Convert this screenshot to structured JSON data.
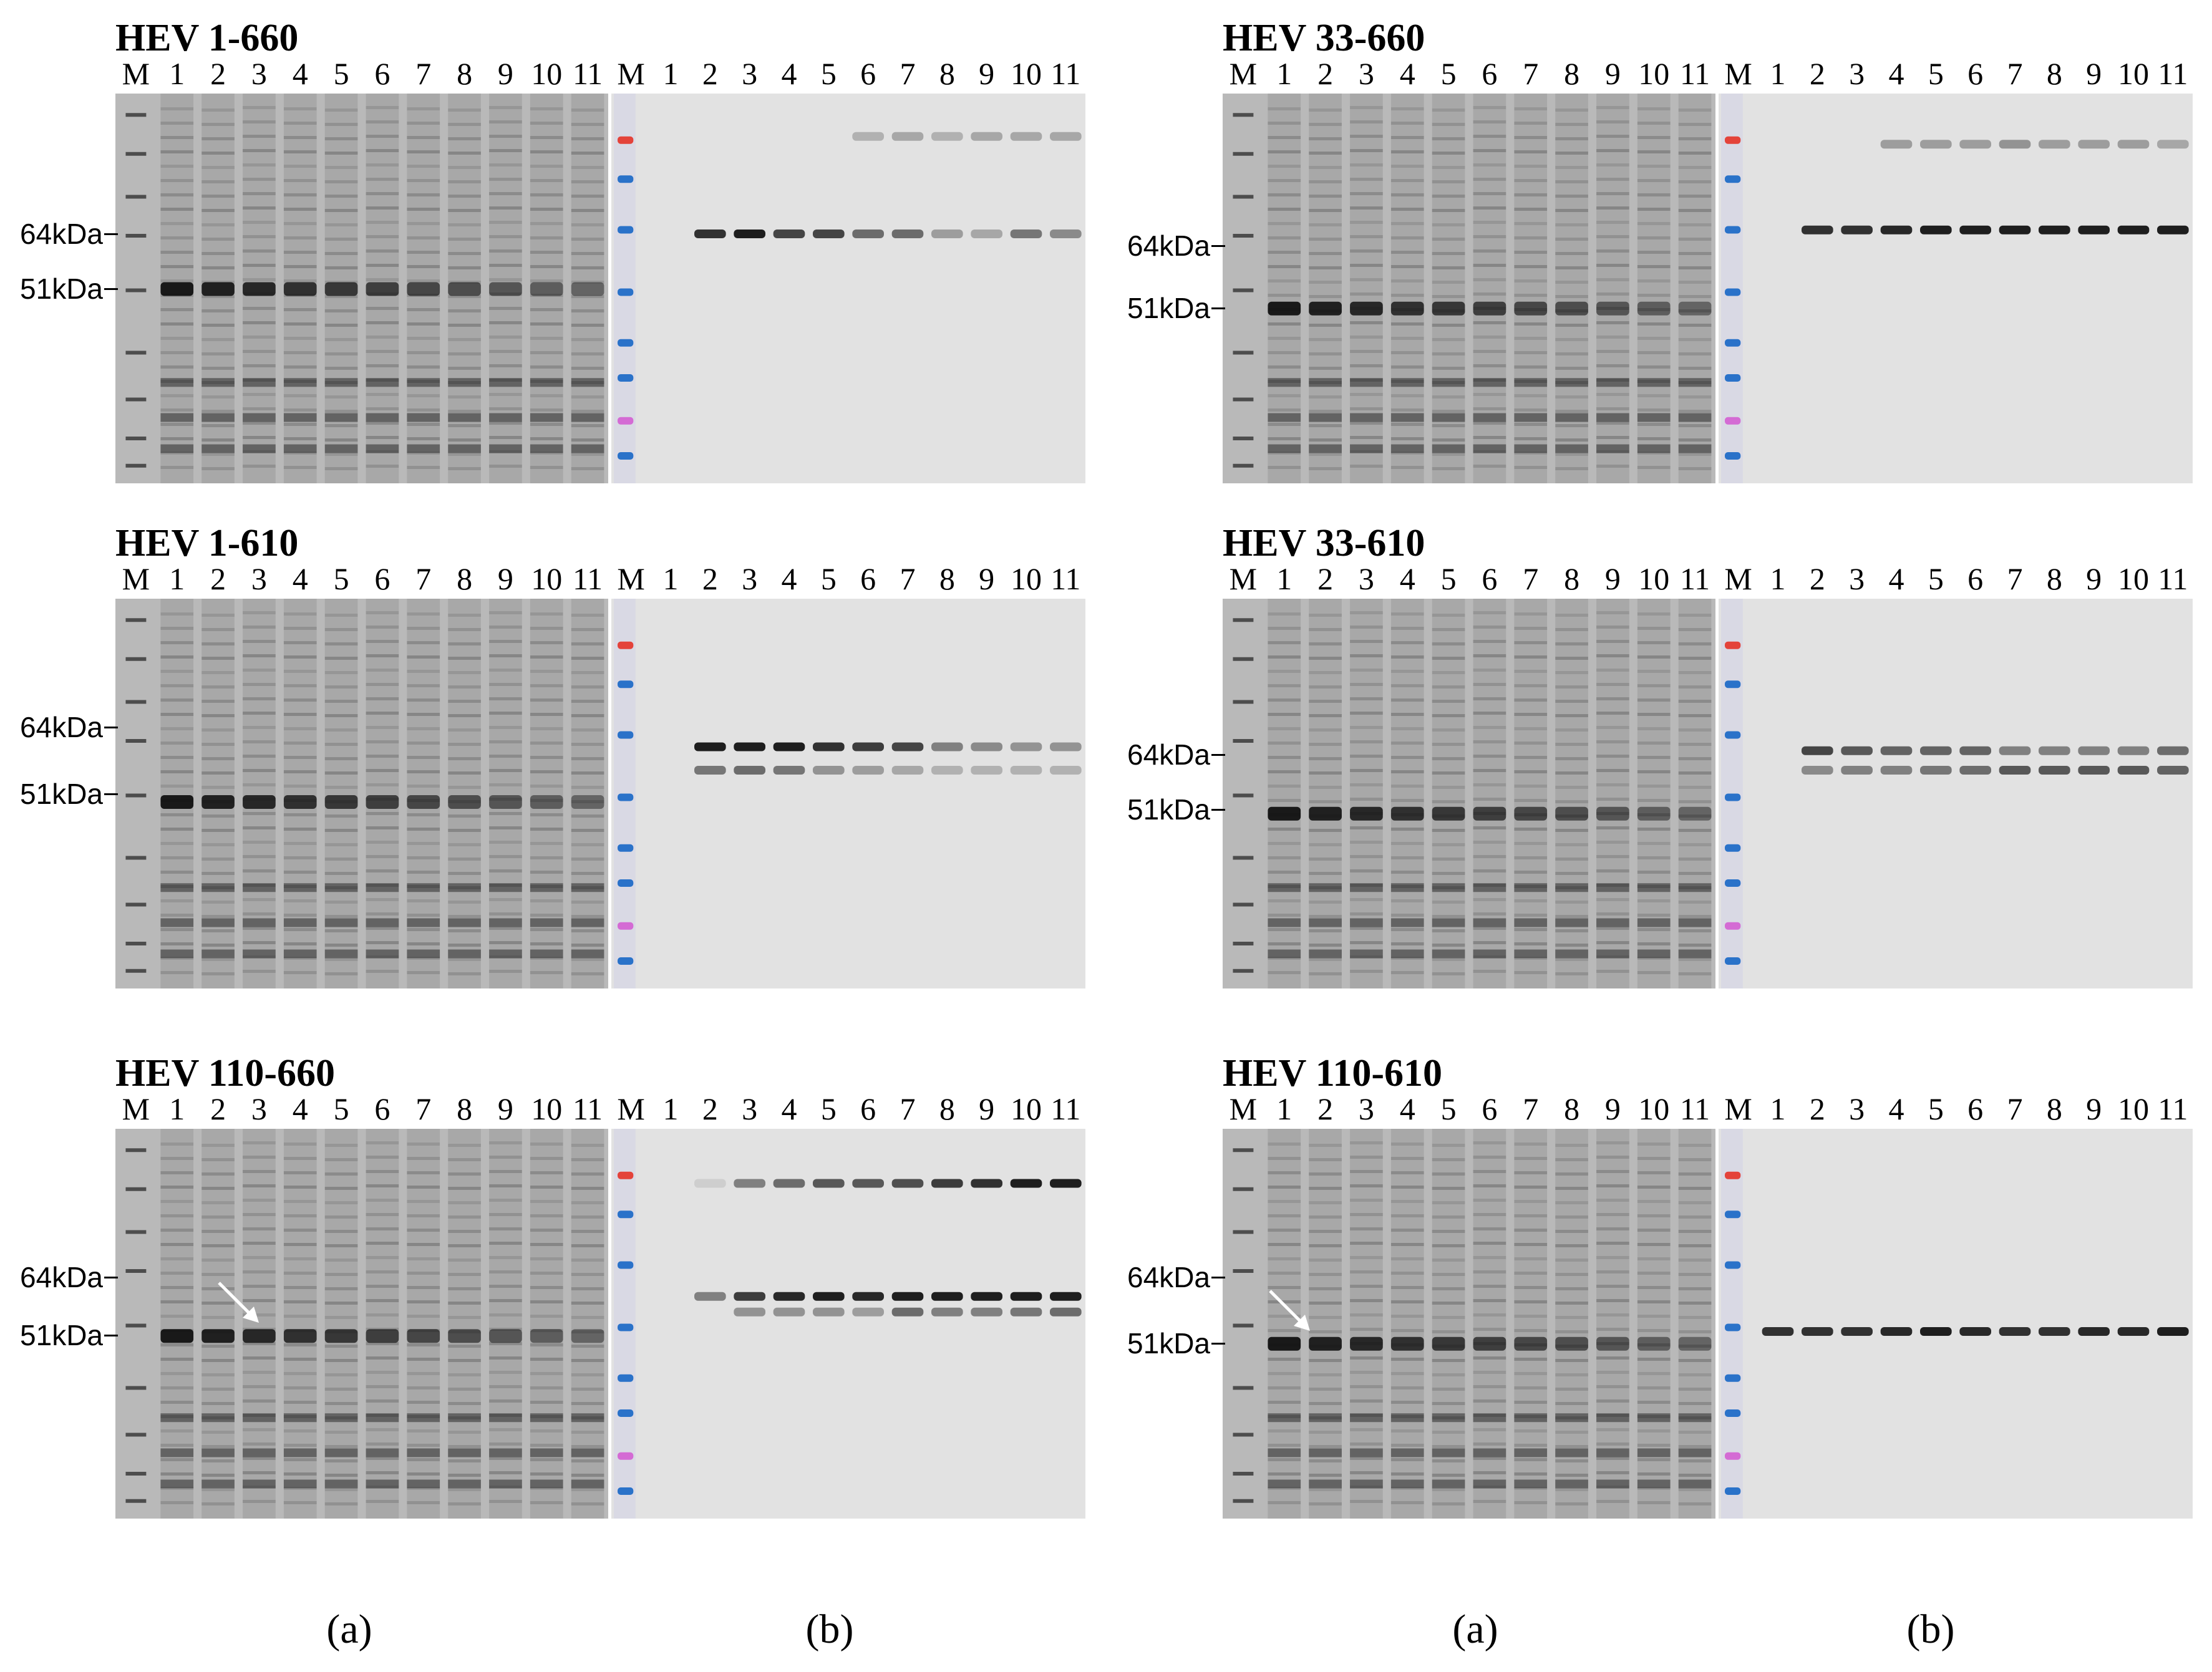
{
  "panels": [
    {
      "title": "HEV 1-660",
      "lanes_a": [
        "M",
        "1",
        "2",
        "3",
        "4",
        "5",
        "6",
        "7",
        "8",
        "9",
        "10",
        "11"
      ],
      "lanes_b": [
        "M",
        "1",
        "2",
        "3",
        "4",
        "5",
        "6",
        "7",
        "8",
        "9",
        "10",
        "11"
      ],
      "markers": [
        "64kDa",
        "51kDa"
      ],
      "has_arrow": false
    },
    {
      "title": "HEV 33-660",
      "lanes_a": [
        "M",
        "1",
        "2",
        "3",
        "4",
        "5",
        "6",
        "7",
        "8",
        "9",
        "10",
        "11"
      ],
      "lanes_b": [
        "M",
        "1",
        "2",
        "3",
        "4",
        "5",
        "6",
        "7",
        "8",
        "9",
        "10",
        "11"
      ],
      "markers": [
        "64kDa",
        "51kDa"
      ],
      "has_arrow": false
    },
    {
      "title": "HEV 1-610",
      "lanes_a": [
        "M",
        "1",
        "2",
        "3",
        "4",
        "5",
        "6",
        "7",
        "8",
        "9",
        "10",
        "11"
      ],
      "lanes_b": [
        "M",
        "1",
        "2",
        "3",
        "4",
        "5",
        "6",
        "7",
        "8",
        "9",
        "10",
        "11"
      ],
      "markers": [
        "64kDa",
        "51kDa"
      ],
      "has_arrow": false
    },
    {
      "title": "HEV 33-610",
      "lanes_a": [
        "M",
        "1",
        "2",
        "3",
        "4",
        "5",
        "6",
        "7",
        "8",
        "9",
        "10",
        "11"
      ],
      "lanes_b": [
        "M",
        "1",
        "2",
        "3",
        "4",
        "5",
        "6",
        "7",
        "8",
        "9",
        "10",
        "11"
      ],
      "markers": [
        "64kDa",
        "51kDa"
      ],
      "has_arrow": false
    },
    {
      "title": "HEV  110-660",
      "lanes_a": [
        "M",
        "1",
        "2",
        "3",
        "4",
        "5",
        "6",
        "7",
        "8",
        "9",
        "10",
        "11"
      ],
      "lanes_b": [
        "M",
        "1",
        "2",
        "3",
        "4",
        "5",
        "6",
        "7",
        "8",
        "9",
        "10",
        "11"
      ],
      "markers": [
        "64kDa",
        "51kDa"
      ],
      "has_arrow": true
    },
    {
      "title": "HEV 110-610",
      "lanes_a": [
        "M",
        "1",
        "2",
        "3",
        "4",
        "5",
        "6",
        "7",
        "8",
        "9",
        "10",
        "11"
      ],
      "lanes_b": [
        "M",
        "1",
        "2",
        "3",
        "4",
        "5",
        "6",
        "7",
        "8",
        "9",
        "10",
        "11"
      ],
      "markers": [
        "64kDa",
        "51kDa"
      ],
      "has_arrow": true
    }
  ],
  "captions": [
    "(a)",
    "(b)",
    "(a)",
    "(b)"
  ],
  "colors": {
    "gel_bg": "#b9b9b9",
    "blot_bg": "#e2e2e2",
    "band": "#1e1e1e",
    "ladder_red": "#e4433a",
    "ladder_blue": "#2a72c9",
    "ladder_pink": "#d46bd4"
  }
}
